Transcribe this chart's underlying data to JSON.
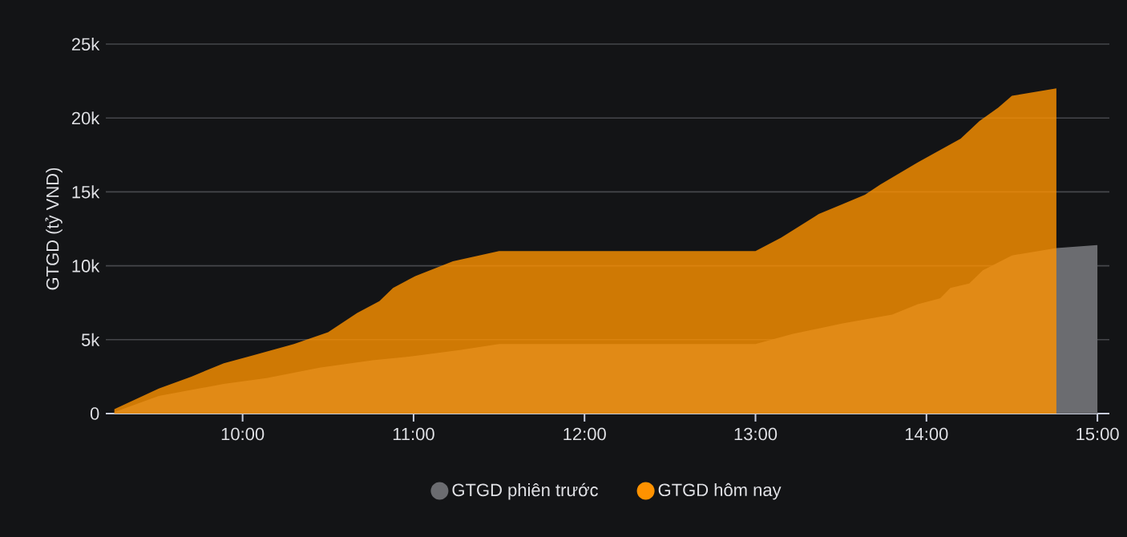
{
  "chart_data": {
    "type": "area",
    "ylabel": "GTGD (tỷ VND)",
    "xlim": [
      9.2,
      15.07
    ],
    "ylim": [
      0,
      25000
    ],
    "xticks": [
      {
        "value": 10,
        "label": "10:00"
      },
      {
        "value": 11,
        "label": "11:00"
      },
      {
        "value": 12,
        "label": "12:00"
      },
      {
        "value": 13,
        "label": "13:00"
      },
      {
        "value": 14,
        "label": "14:00"
      },
      {
        "value": 15,
        "label": "15:00"
      }
    ],
    "yticks": [
      0,
      {
        "value": 5000,
        "label": "5k"
      },
      {
        "value": 10000,
        "label": "10k"
      },
      {
        "value": 15000,
        "label": "15k"
      },
      {
        "value": 20000,
        "label": "20k"
      },
      {
        "value": 25000,
        "label": "25k"
      }
    ],
    "grid": "y",
    "legend": "bottom",
    "marker": "none",
    "series": [
      {
        "name": "GTGD phiên trước",
        "color": "#6b6c70",
        "x": [
          9.25,
          9.51,
          9.89,
          10.14,
          10.45,
          10.76,
          11.01,
          11.27,
          11.5,
          13.0,
          13.22,
          13.51,
          13.8,
          13.95,
          14.08,
          14.14,
          14.25,
          14.33,
          14.5,
          14.76,
          15.0
        ],
        "values": [
          100,
          1200,
          2000,
          2400,
          3100,
          3600,
          3900,
          4300,
          4700,
          4700,
          5400,
          6100,
          6700,
          7400,
          7800,
          8500,
          8800,
          9700,
          10700,
          11200,
          11400
        ]
      },
      {
        "name": "GTGD hôm nay",
        "color": "#ff9200",
        "x": [
          9.25,
          9.51,
          9.7,
          9.89,
          10.05,
          10.3,
          10.5,
          10.67,
          10.8,
          10.88,
          11.01,
          11.23,
          11.5,
          13.0,
          13.15,
          13.37,
          13.64,
          13.73,
          13.95,
          14.2,
          14.31,
          14.42,
          14.5,
          14.76
        ],
        "values": [
          300,
          1700,
          2500,
          3400,
          3900,
          4700,
          5500,
          6800,
          7600,
          8500,
          9300,
          10300,
          11000,
          11000,
          11900,
          13500,
          14800,
          15500,
          17000,
          18600,
          19800,
          20700,
          21500,
          22000
        ]
      }
    ]
  }
}
